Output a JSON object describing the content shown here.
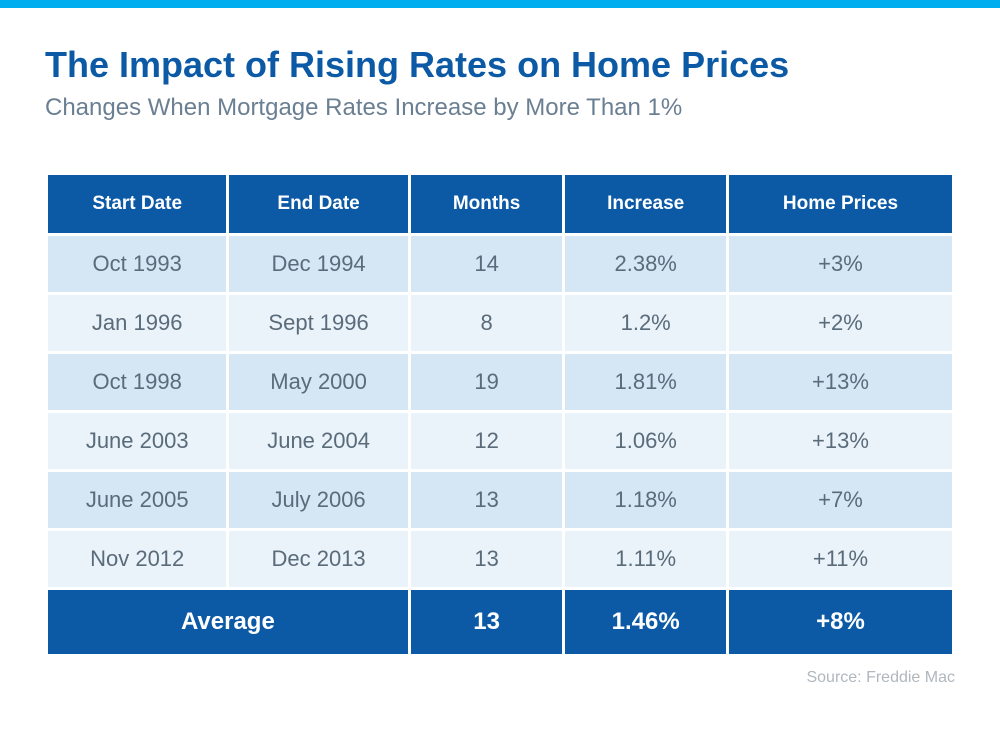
{
  "accent_bar_color": "#00aeef",
  "title": {
    "text": "The Impact of Rising Rates on Home Prices",
    "color": "#0c5aa6",
    "fontsize": 36
  },
  "subtitle": {
    "text": "Changes When Mortgage Rates Increase by More Than 1%",
    "color": "#6b7f92",
    "fontsize": 24
  },
  "table": {
    "header_bg": "#0c5aa6",
    "header_color": "#ffffff",
    "header_fontsize": 19,
    "row_odd_bg": "#d5e6f5",
    "row_even_bg": "#eaf2fa",
    "row_text_color": "#5a6b7a",
    "row_fontsize": 22,
    "avg_bg": "#0c5aa6",
    "avg_color": "#ffffff",
    "avg_fontsize": 24,
    "columns": [
      "Start Date",
      "End Date",
      "Months",
      "Increase",
      "Home Prices"
    ],
    "col_widths": [
      "20%",
      "20%",
      "17%",
      "18%",
      "25%"
    ],
    "rows": [
      [
        "Oct 1993",
        "Dec 1994",
        "14",
        "2.38%",
        "+3%"
      ],
      [
        "Jan 1996",
        "Sept 1996",
        "8",
        "1.2%",
        "+2%"
      ],
      [
        "Oct 1998",
        "May 2000",
        "19",
        "1.81%",
        "+13%"
      ],
      [
        "June 2003",
        "June 2004",
        "12",
        "1.06%",
        "+13%"
      ],
      [
        "June 2005",
        "July 2006",
        "13",
        "1.18%",
        "+7%"
      ],
      [
        "Nov 2012",
        "Dec 2013",
        "13",
        "1.11%",
        "+11%"
      ]
    ],
    "average": {
      "label": "Average",
      "values": [
        "13",
        "1.46%",
        "+8%"
      ]
    }
  },
  "source": {
    "text": "Source: Freddie Mac",
    "color": "#b0b7bd",
    "fontsize": 16
  }
}
